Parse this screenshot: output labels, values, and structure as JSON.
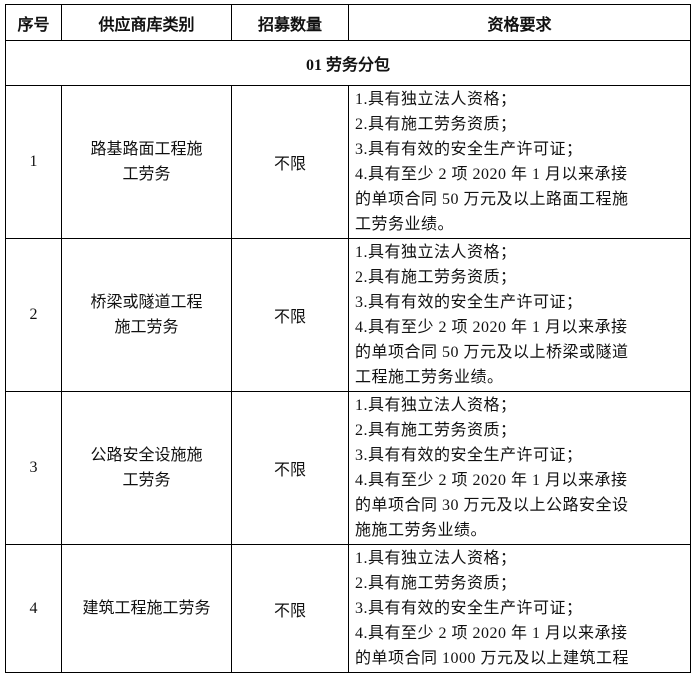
{
  "headers": [
    "序号",
    "供应商库类别",
    "招募数量",
    "资格要求"
  ],
  "section": "01 劳务分包",
  "rows": [
    {
      "no": "1",
      "category": [
        "路基路面工程施",
        "工劳务"
      ],
      "quantity": "不限",
      "requirements": [
        "1.具有独立法人资格；",
        "2.具有施工劳务资质；",
        "3.具有有效的安全生产许可证；",
        "4.具有至少 2 项 2020 年 1 月以来承接",
        "的单项合同 50 万元及以上路面工程施",
        "工劳务业绩。"
      ]
    },
    {
      "no": "2",
      "category": [
        "桥梁或隧道工程",
        "施工劳务"
      ],
      "quantity": "不限",
      "requirements": [
        "1.具有独立法人资格；",
        "2.具有施工劳务资质；",
        "3.具有有效的安全生产许可证；",
        "4.具有至少 2 项 2020 年 1 月以来承接",
        "的单项合同 50 万元及以上桥梁或隧道",
        "工程施工劳务业绩。"
      ]
    },
    {
      "no": "3",
      "category": [
        "公路安全设施施",
        "工劳务"
      ],
      "quantity": "不限",
      "requirements": [
        "1.具有独立法人资格；",
        "2.具有施工劳务资质；",
        "3.具有有效的安全生产许可证；",
        "4.具有至少 2 项 2020 年 1 月以来承接",
        "的单项合同 30 万元及以上公路安全设",
        "施施工劳务业绩。"
      ]
    },
    {
      "no": "4",
      "category": [
        "建筑工程施工劳务"
      ],
      "quantity": "不限",
      "requirements": [
        "1.具有独立法人资格；",
        "2.具有施工劳务资质；",
        "3.具有有效的安全生产许可证；",
        "4.具有至少 2 项 2020 年 1 月以来承接",
        "的单项合同 1000 万元及以上建筑工程"
      ]
    }
  ]
}
